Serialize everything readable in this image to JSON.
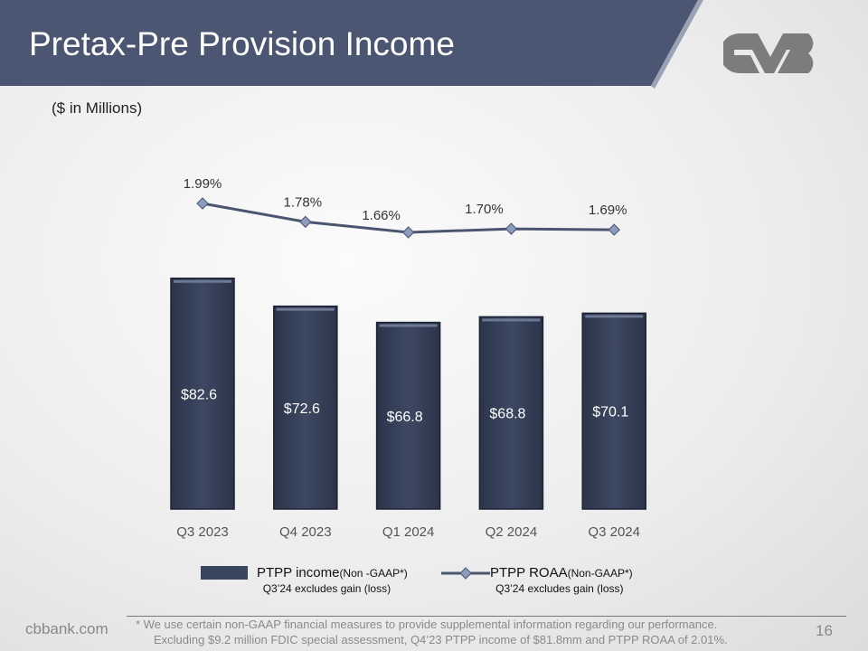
{
  "header": {
    "title": "Pretax-Pre Provision Income",
    "logo_text": "CVB"
  },
  "subtitle": "($ in Millions)",
  "chart_data": {
    "type": "bar+line",
    "categories": [
      "Q3 2023",
      "Q4 2023",
      "Q1 2024",
      "Q2 2024",
      "Q3 2024"
    ],
    "series": [
      {
        "name": "PTPP income (Non -GAAP*)",
        "type": "bar",
        "values": [
          82.6,
          72.6,
          66.8,
          68.8,
          70.1
        ],
        "labels": [
          "$82.6",
          "$72.6",
          "$66.8",
          "$68.8",
          "$70.1"
        ],
        "color": "#3a4560"
      },
      {
        "name": "PTPP ROAA (Non-GAAP*)",
        "type": "line",
        "values": [
          1.99,
          1.78,
          1.66,
          1.7,
          1.69
        ],
        "labels": [
          "1.99%",
          "1.78%",
          "1.66%",
          "1.70%",
          "1.69%"
        ],
        "color": "#4a5570",
        "marker_color": "#8d9bbd"
      }
    ]
  },
  "legend": {
    "bar_main": "PTPP income ",
    "bar_small": "(Non -GAAP*)",
    "bar_sub": "Q3’24 excludes gain (loss)",
    "line_main": "PTPP ROAA ",
    "line_small": "(Non-GAAP*)",
    "line_sub": "Q3’24 excludes gain (loss)"
  },
  "footer": {
    "site": "cbbank.com",
    "note_line1": "*   We use certain non-GAAP financial measures to provide supplemental information regarding our performance.",
    "note_line2": "Excluding $9.2 million FDIC special assessment, Q4’23 PTPP income of $81.8mm and PTPP ROAA of 2.01%.",
    "page": "16"
  }
}
